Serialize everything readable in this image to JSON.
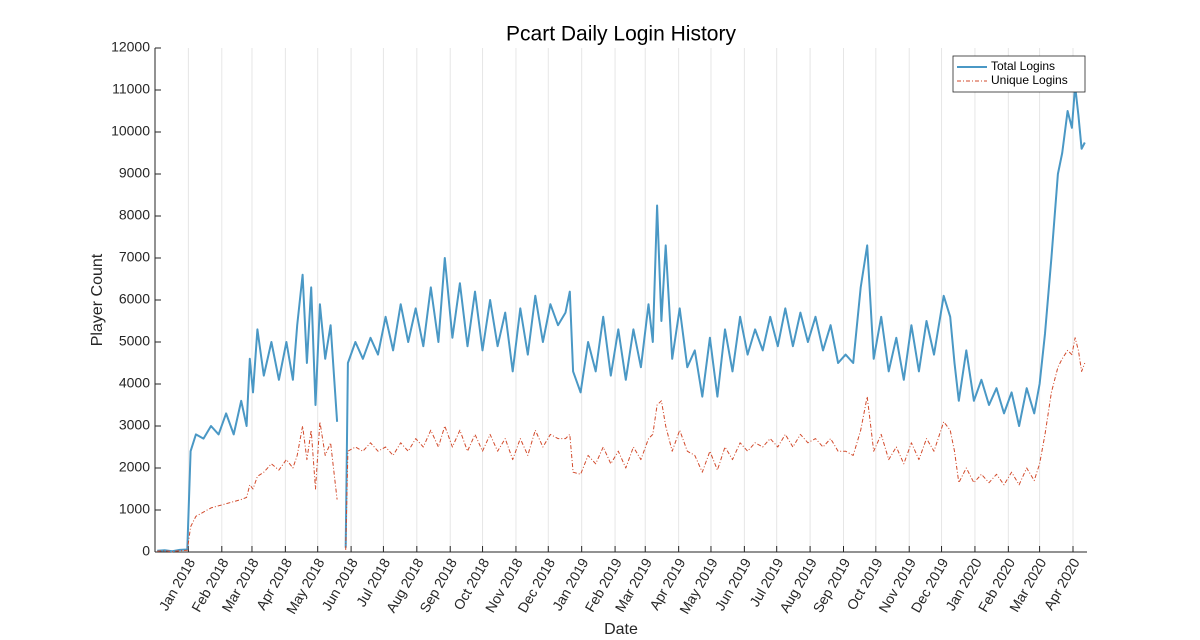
{
  "chart_data": {
    "type": "line",
    "title": "Pcart Daily Login History",
    "x_label": "Date",
    "y_label": "Player Count",
    "xlim": [
      "2017-12-01",
      "2020-04-14"
    ],
    "ylim": [
      0,
      12000
    ],
    "yticks": [
      0,
      1000,
      2000,
      3000,
      4000,
      5000,
      6000,
      7000,
      8000,
      9000,
      10000,
      11000,
      12000
    ],
    "xticks": [
      {
        "value": "2018-01-01",
        "label": "Jan 2018"
      },
      {
        "value": "2018-02-01",
        "label": "Feb 2018"
      },
      {
        "value": "2018-03-01",
        "label": "Mar 2018"
      },
      {
        "value": "2018-04-01",
        "label": "Apr 2018"
      },
      {
        "value": "2018-05-01",
        "label": "May 2018"
      },
      {
        "value": "2018-06-01",
        "label": "Jun 2018"
      },
      {
        "value": "2018-07-01",
        "label": "Jul 2018"
      },
      {
        "value": "2018-08-01",
        "label": "Aug 2018"
      },
      {
        "value": "2018-09-01",
        "label": "Sep 2018"
      },
      {
        "value": "2018-10-01",
        "label": "Oct 2018"
      },
      {
        "value": "2018-11-01",
        "label": "Nov 2018"
      },
      {
        "value": "2018-12-01",
        "label": "Dec 2018"
      },
      {
        "value": "2019-01-01",
        "label": "Jan 2019"
      },
      {
        "value": "2019-02-01",
        "label": "Feb 2019"
      },
      {
        "value": "2019-03-01",
        "label": "Mar 2019"
      },
      {
        "value": "2019-04-01",
        "label": "Apr 2019"
      },
      {
        "value": "2019-05-01",
        "label": "May 2019"
      },
      {
        "value": "2019-06-01",
        "label": "Jun 2019"
      },
      {
        "value": "2019-07-01",
        "label": "Jul 2019"
      },
      {
        "value": "2019-08-01",
        "label": "Aug 2019"
      },
      {
        "value": "2019-09-01",
        "label": "Sep 2019"
      },
      {
        "value": "2019-10-01",
        "label": "Oct 2019"
      },
      {
        "value": "2019-11-01",
        "label": "Nov 2019"
      },
      {
        "value": "2019-12-01",
        "label": "Dec 2019"
      },
      {
        "value": "2020-01-01",
        "label": "Jan 2020"
      },
      {
        "value": "2020-02-01",
        "label": "Feb 2020"
      },
      {
        "value": "2020-03-01",
        "label": "Mar 2020"
      },
      {
        "value": "2020-04-01",
        "label": "Apr 2020"
      }
    ],
    "grid": "x",
    "legend": "upper right",
    "x": [
      "2017-12-03",
      "2017-12-10",
      "2017-12-17",
      "2017-12-24",
      "2017-12-31",
      "2018-01-03",
      "2018-01-08",
      "2018-01-15",
      "2018-01-22",
      "2018-01-29",
      "2018-02-05",
      "2018-02-12",
      "2018-02-19",
      "2018-02-24",
      "2018-02-27",
      "2018-03-02",
      "2018-03-06",
      "2018-03-12",
      "2018-03-19",
      "2018-03-26",
      "2018-04-02",
      "2018-04-08",
      "2018-04-12",
      "2018-04-17",
      "2018-04-21",
      "2018-04-25",
      "2018-04-29",
      "2018-05-03",
      "2018-05-08",
      "2018-05-13",
      "2018-05-19",
      "2018-05-23",
      "2018-05-27",
      "2018-05-29",
      "2018-06-05",
      "2018-06-12",
      "2018-06-19",
      "2018-06-26",
      "2018-07-03",
      "2018-07-10",
      "2018-07-17",
      "2018-07-24",
      "2018-07-31",
      "2018-08-07",
      "2018-08-14",
      "2018-08-21",
      "2018-08-27",
      "2018-09-03",
      "2018-09-10",
      "2018-09-17",
      "2018-09-24",
      "2018-10-01",
      "2018-10-08",
      "2018-10-15",
      "2018-10-22",
      "2018-10-29",
      "2018-11-05",
      "2018-11-12",
      "2018-11-19",
      "2018-11-26",
      "2018-12-03",
      "2018-12-10",
      "2018-12-17",
      "2018-12-21",
      "2018-12-24",
      "2018-12-31",
      "2019-01-07",
      "2019-01-14",
      "2019-01-21",
      "2019-01-28",
      "2019-02-04",
      "2019-02-11",
      "2019-02-18",
      "2019-02-25",
      "2019-03-04",
      "2019-03-08",
      "2019-03-12",
      "2019-03-16",
      "2019-03-20",
      "2019-03-26",
      "2019-04-02",
      "2019-04-09",
      "2019-04-16",
      "2019-04-23",
      "2019-04-30",
      "2019-05-07",
      "2019-05-14",
      "2019-05-21",
      "2019-05-28",
      "2019-06-04",
      "2019-06-11",
      "2019-06-18",
      "2019-06-25",
      "2019-07-02",
      "2019-07-09",
      "2019-07-16",
      "2019-07-23",
      "2019-07-30",
      "2019-08-06",
      "2019-08-13",
      "2019-08-20",
      "2019-08-27",
      "2019-09-03",
      "2019-09-10",
      "2019-09-17",
      "2019-09-23",
      "2019-09-29",
      "2019-10-06",
      "2019-10-13",
      "2019-10-20",
      "2019-10-27",
      "2019-11-03",
      "2019-11-10",
      "2019-11-17",
      "2019-11-24",
      "2019-12-03",
      "2019-12-09",
      "2019-12-13",
      "2019-12-17",
      "2019-12-24",
      "2019-12-31",
      "2020-01-07",
      "2020-01-14",
      "2020-01-21",
      "2020-01-28",
      "2020-02-04",
      "2020-02-11",
      "2020-02-18",
      "2020-02-25",
      "2020-03-01",
      "2020-03-06",
      "2020-03-12",
      "2020-03-18",
      "2020-03-22",
      "2020-03-27",
      "2020-03-31",
      "2020-04-03",
      "2020-04-06",
      "2020-04-09",
      "2020-04-12"
    ],
    "series": [
      {
        "name": "Total Logins",
        "color": "#4a98c5",
        "linestyle": "solid",
        "linewidth": 2,
        "values": [
          30,
          40,
          20,
          50,
          60,
          2400,
          2800,
          2700,
          3000,
          2800,
          3300,
          2800,
          3600,
          3000,
          4600,
          3800,
          5300,
          4200,
          5000,
          4100,
          5000,
          4100,
          5400,
          6600,
          4500,
          6300,
          3500,
          5900,
          4600,
          5400,
          3100,
          null,
          100,
          4500,
          5000,
          4600,
          5100,
          4700,
          5600,
          4800,
          5900,
          5000,
          5800,
          4900,
          6300,
          5000,
          7000,
          5100,
          6400,
          4900,
          6200,
          4800,
          6000,
          4900,
          5700,
          4300,
          5800,
          4700,
          6100,
          5000,
          5900,
          5400,
          5700,
          6200,
          4300,
          3800,
          5000,
          4300,
          5600,
          4200,
          5300,
          4100,
          5300,
          4400,
          5900,
          5000,
          8250,
          5500,
          7300,
          4600,
          5800,
          4400,
          4800,
          3700,
          5100,
          3700,
          5300,
          4300,
          5600,
          4700,
          5300,
          4800,
          5600,
          4900,
          5800,
          4900,
          5700,
          5000,
          5600,
          4800,
          5400,
          4500,
          4700,
          4500,
          6300,
          7300,
          4600,
          5600,
          4300,
          5100,
          4100,
          5400,
          4300,
          5500,
          4700,
          6100,
          5600,
          4500,
          3600,
          4800,
          3600,
          4100,
          3500,
          3900,
          3300,
          3800,
          3000,
          3900,
          3300,
          4000,
          5200,
          7000,
          9000,
          9500,
          10500,
          10100,
          11100,
          10400,
          9600,
          9750
        ]
      },
      {
        "name": "Unique Logins",
        "color": "#d24a2b",
        "linestyle": "dashdot",
        "linewidth": 1,
        "values": [
          20,
          30,
          10,
          30,
          40,
          600,
          850,
          950,
          1050,
          1100,
          1150,
          1200,
          1250,
          1300,
          1600,
          1500,
          1800,
          1900,
          2100,
          1950,
          2200,
          2000,
          2300,
          3000,
          2200,
          2900,
          1500,
          3100,
          2300,
          2600,
          1250,
          null,
          50,
          2400,
          2500,
          2400,
          2600,
          2400,
          2500,
          2300,
          2600,
          2400,
          2700,
          2500,
          2900,
          2500,
          3000,
          2500,
          2900,
          2400,
          2800,
          2400,
          2800,
          2400,
          2700,
          2200,
          2700,
          2300,
          2900,
          2500,
          2800,
          2700,
          2700,
          2800,
          1900,
          1850,
          2300,
          2100,
          2500,
          2100,
          2400,
          2000,
          2500,
          2200,
          2700,
          2800,
          3500,
          3600,
          3000,
          2400,
          2900,
          2400,
          2300,
          1900,
          2400,
          1950,
          2500,
          2200,
          2600,
          2400,
          2600,
          2500,
          2700,
          2500,
          2800,
          2500,
          2800,
          2600,
          2700,
          2500,
          2700,
          2400,
          2400,
          2300,
          2900,
          3700,
          2400,
          2800,
          2200,
          2500,
          2100,
          2600,
          2200,
          2700,
          2400,
          3100,
          2900,
          2400,
          1650,
          2000,
          1650,
          1850,
          1650,
          1850,
          1600,
          1900,
          1600,
          2000,
          1700,
          2100,
          2800,
          3800,
          4400,
          4600,
          4800,
          4700,
          5100,
          4800,
          4300,
          4500
        ]
      }
    ]
  }
}
